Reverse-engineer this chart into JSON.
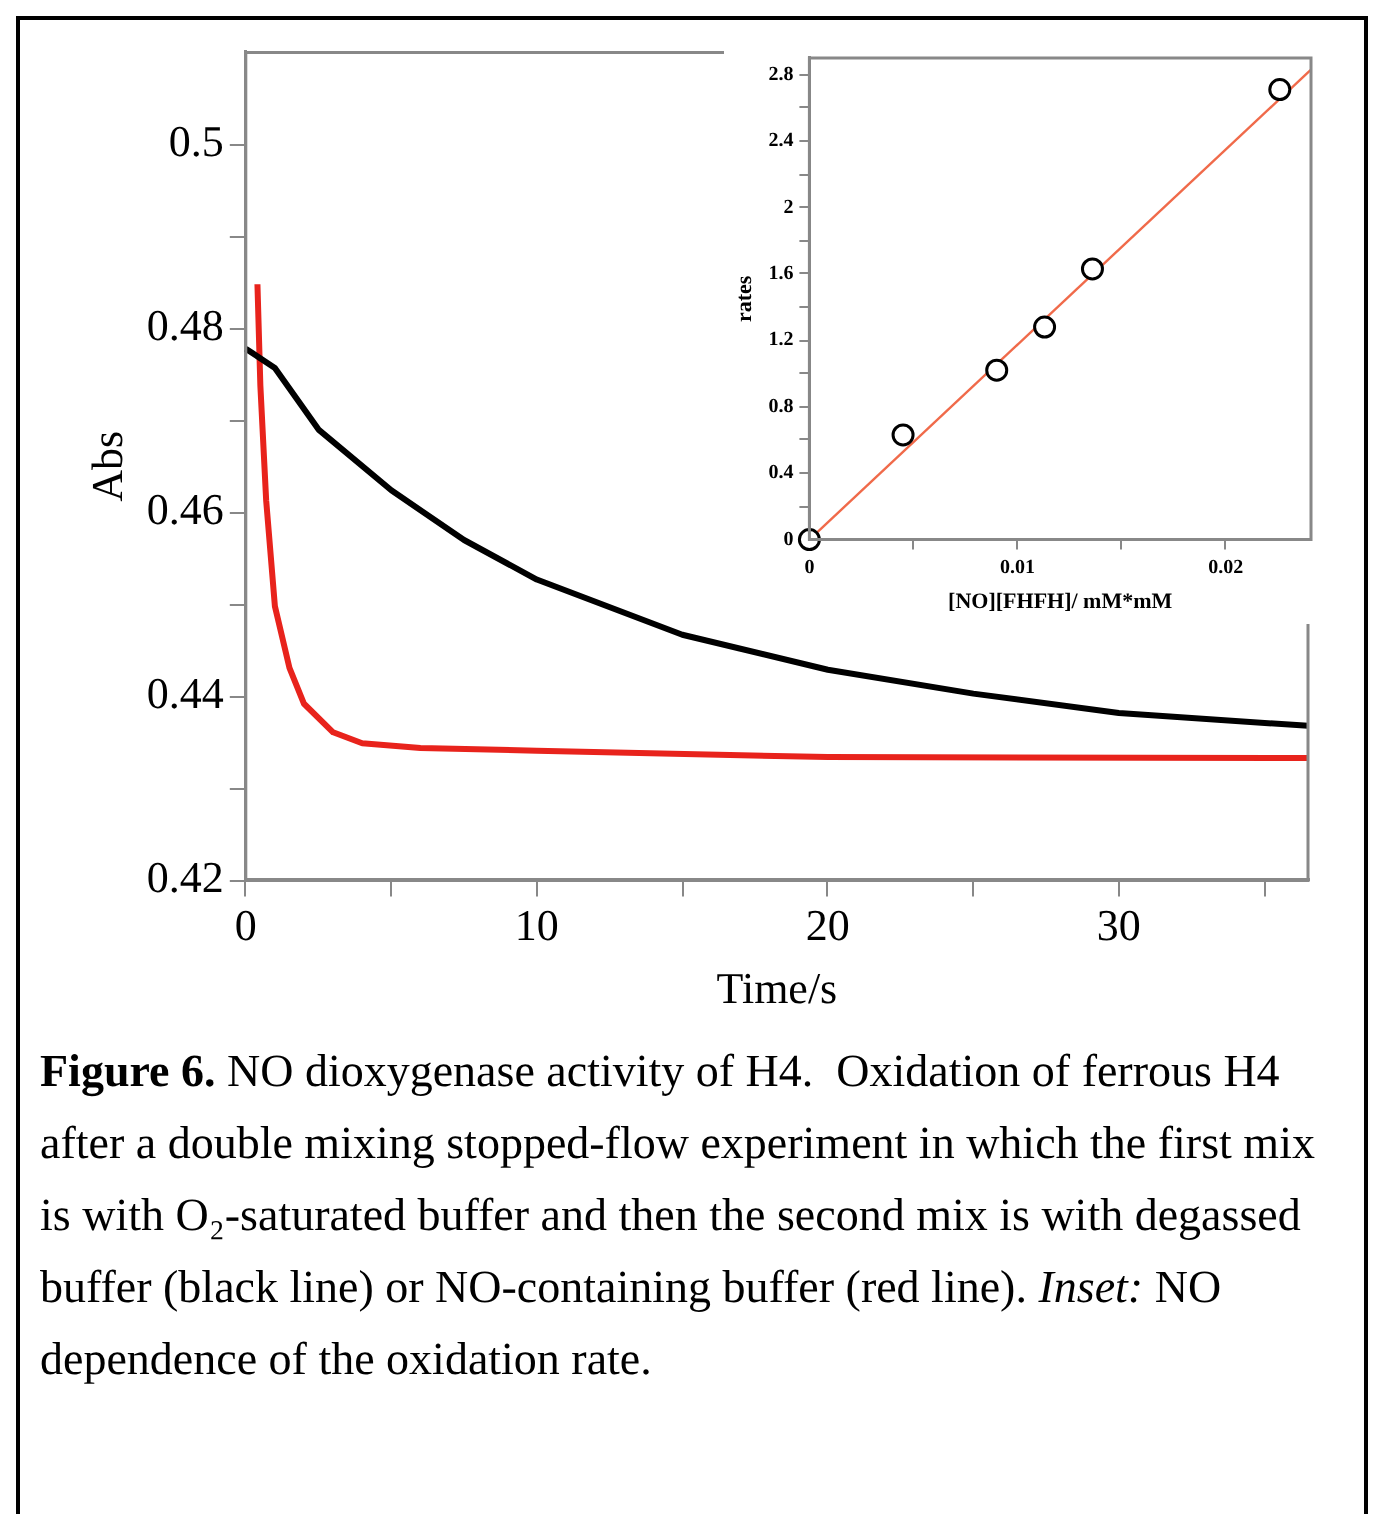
{
  "chart_data": [
    {
      "type": "line",
      "xlabel": "Time/s",
      "ylabel": "Abs",
      "xlim": [
        0,
        36.5
      ],
      "ylim": [
        0.42,
        0.51
      ],
      "xticks": [
        0,
        {
          "value": 5,
          "label": null
        },
        10,
        {
          "value": 15,
          "label": null
        },
        20,
        {
          "value": 25,
          "label": null
        },
        30,
        {
          "value": 35,
          "label": null
        }
      ],
      "yticks": [
        0.42,
        {
          "value": 0.43,
          "label": null
        },
        0.44,
        {
          "value": 0.45,
          "label": null
        },
        0.46,
        {
          "value": 0.47,
          "label": null
        },
        0.48,
        {
          "value": 0.49,
          "label": null
        },
        0.5
      ],
      "grid": false,
      "legend": false,
      "line_style": "solid",
      "annotations": [
        "Figure 6.",
        "NO dioxygenase activity of H4.  Oxidation of ferrous H4 after a double mixing stopped-flow experiment in which the first mix is with O₂-saturated buffer and then the second mix is with degassed buffer (black line) or NO-containing buffer (red line).",
        "Inset:",
        "NO dependence of the oxidation rate."
      ],
      "series": [
        {
          "color": "#000000",
          "x": [
            0,
            1,
            2.5,
            5,
            7.5,
            10,
            15,
            20,
            25,
            30,
            36.5
          ],
          "values": [
            0.4778,
            0.4757,
            0.469,
            0.4624,
            0.457,
            0.4527,
            0.4467,
            0.4429,
            0.4403,
            0.4382,
            0.4368
          ]
        },
        {
          "color": "#e8231c",
          "x": [
            0.4,
            0.5,
            0.7,
            1,
            1.5,
            2,
            3,
            4,
            6,
            10,
            20,
            36.5
          ],
          "values": [
            0.4848,
            0.4738,
            0.4613,
            0.4498,
            0.4431,
            0.4392,
            0.4361,
            0.4349,
            0.4344,
            0.4341,
            0.4334,
            0.4333
          ]
        }
      ]
    },
    {
      "type": "scatter",
      "xlabel": "[NO][FHFH]/ mM*mM",
      "ylabel": "rates",
      "xlim": [
        0,
        0.0241
      ],
      "ylim": [
        0,
        2.9
      ],
      "xticks": [
        0,
        {
          "value": 0.005,
          "label": null
        },
        0.01,
        {
          "value": 0.015,
          "label": null
        },
        0.02
      ],
      "yticks": [
        0,
        {
          "value": 0.2,
          "label": null
        },
        0.4,
        {
          "value": 0.6,
          "label": null
        },
        0.8,
        {
          "value": 1,
          "label": null
        },
        1.2,
        {
          "value": 1.4,
          "label": null
        },
        1.6,
        {
          "value": 1.8,
          "label": null
        },
        2,
        {
          "value": 2.2,
          "label": null
        },
        2.4,
        {
          "value": 2.6,
          "label": null
        },
        2.8
      ],
      "grid": false,
      "legend": false,
      "series": [
        {
          "marker": "circle",
          "color": "#000000",
          "x": [
            0,
            0.0045,
            0.009,
            0.0113,
            0.0136,
            0.0226
          ],
          "values": [
            0,
            0.63,
            1.02,
            1.28,
            1.63,
            2.71
          ]
        },
        {
          "type": "line",
          "color": "#f06a4a",
          "x": [
            0,
            0.0241
          ],
          "values": [
            0,
            2.83
          ]
        }
      ]
    }
  ]
}
